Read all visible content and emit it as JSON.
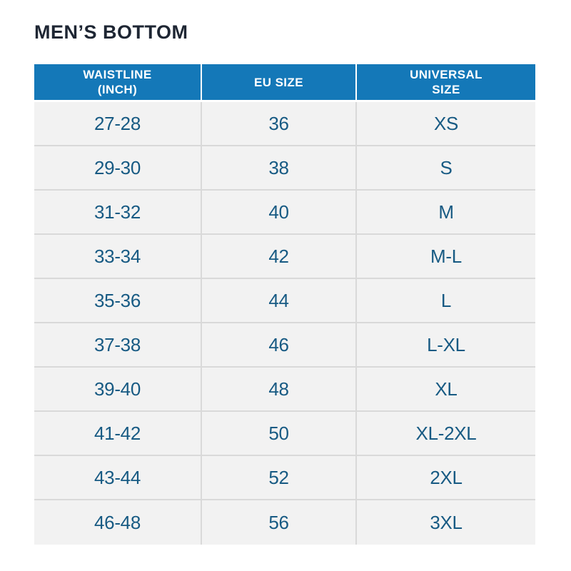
{
  "page": {
    "title": "MEN’S BOTTOM"
  },
  "colors": {
    "header_bg": "#1478b8",
    "header_text": "#ffffff",
    "row_bg": "#f2f2f2",
    "row_text": "#175a83",
    "title_text": "#1e2633",
    "divider": "#d9d9d9",
    "background": "#ffffff"
  },
  "table": {
    "columns": [
      {
        "id": "waistline",
        "label": "WAISTLINE\n(INCH)"
      },
      {
        "id": "eu",
        "label": "EU SIZE"
      },
      {
        "id": "universal",
        "label": "UNIVERSAL\nSIZE"
      }
    ],
    "rows": [
      {
        "waistline": "27-28",
        "eu": "36",
        "universal": "XS"
      },
      {
        "waistline": "29-30",
        "eu": "38",
        "universal": "S"
      },
      {
        "waistline": "31-32",
        "eu": "40",
        "universal": "M"
      },
      {
        "waistline": "33-34",
        "eu": "42",
        "universal": "M-L"
      },
      {
        "waistline": "35-36",
        "eu": "44",
        "universal": "L"
      },
      {
        "waistline": "37-38",
        "eu": "46",
        "universal": "L-XL"
      },
      {
        "waistline": "39-40",
        "eu": "48",
        "universal": "XL"
      },
      {
        "waistline": "41-42",
        "eu": "50",
        "universal": "XL-2XL"
      },
      {
        "waistline": "43-44",
        "eu": "52",
        "universal": "2XL"
      },
      {
        "waistline": "46-48",
        "eu": "56",
        "universal": "3XL"
      }
    ]
  },
  "chart_data": {
    "type": "table",
    "title": "MEN’S BOTTOM",
    "columns": [
      "WAISTLINE (INCH)",
      "EU SIZE",
      "UNIVERSAL SIZE"
    ],
    "rows": [
      [
        "27-28",
        "36",
        "XS"
      ],
      [
        "29-30",
        "38",
        "S"
      ],
      [
        "31-32",
        "40",
        "M"
      ],
      [
        "33-34",
        "42",
        "M-L"
      ],
      [
        "35-36",
        "44",
        "L"
      ],
      [
        "37-38",
        "46",
        "L-XL"
      ],
      [
        "39-40",
        "48",
        "XL"
      ],
      [
        "41-42",
        "50",
        "XL-2XL"
      ],
      [
        "43-44",
        "52",
        "2XL"
      ],
      [
        "46-48",
        "56",
        "3XL"
      ]
    ]
  }
}
